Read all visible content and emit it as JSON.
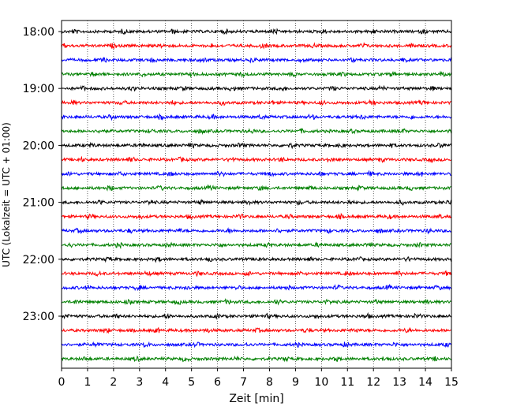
{
  "chart_data": {
    "type": "line",
    "description": "helicorder",
    "xlabel": "Zeit  [min]",
    "ylabel": "UTC (Lokalzeit = UTC + 01:00)",
    "xlim": [
      0,
      15
    ],
    "x_ticks": [
      "0",
      "1",
      "2",
      "3",
      "4",
      "5",
      "6",
      "7",
      "8",
      "9",
      "10",
      "11",
      "12",
      "13",
      "14",
      "15"
    ],
    "y_tick_labels": [
      "18:00",
      "19:00",
      "20:00",
      "21:00",
      "22:00",
      "23:00"
    ],
    "grid": "vertical dotted",
    "trace_start_times": [
      "18:00",
      "18:15",
      "18:30",
      "18:45",
      "19:00",
      "19:15",
      "19:30",
      "19:45",
      "20:00",
      "20:15",
      "20:30",
      "20:45",
      "21:00",
      "21:15",
      "21:30",
      "21:45",
      "22:00",
      "22:15",
      "22:30",
      "22:45",
      "23:00",
      "23:15",
      "23:30",
      "23:45"
    ],
    "trace_colors": [
      "#000000",
      "#ff0000",
      "#0000ff",
      "#008000"
    ],
    "minutes_per_line": 15
  }
}
